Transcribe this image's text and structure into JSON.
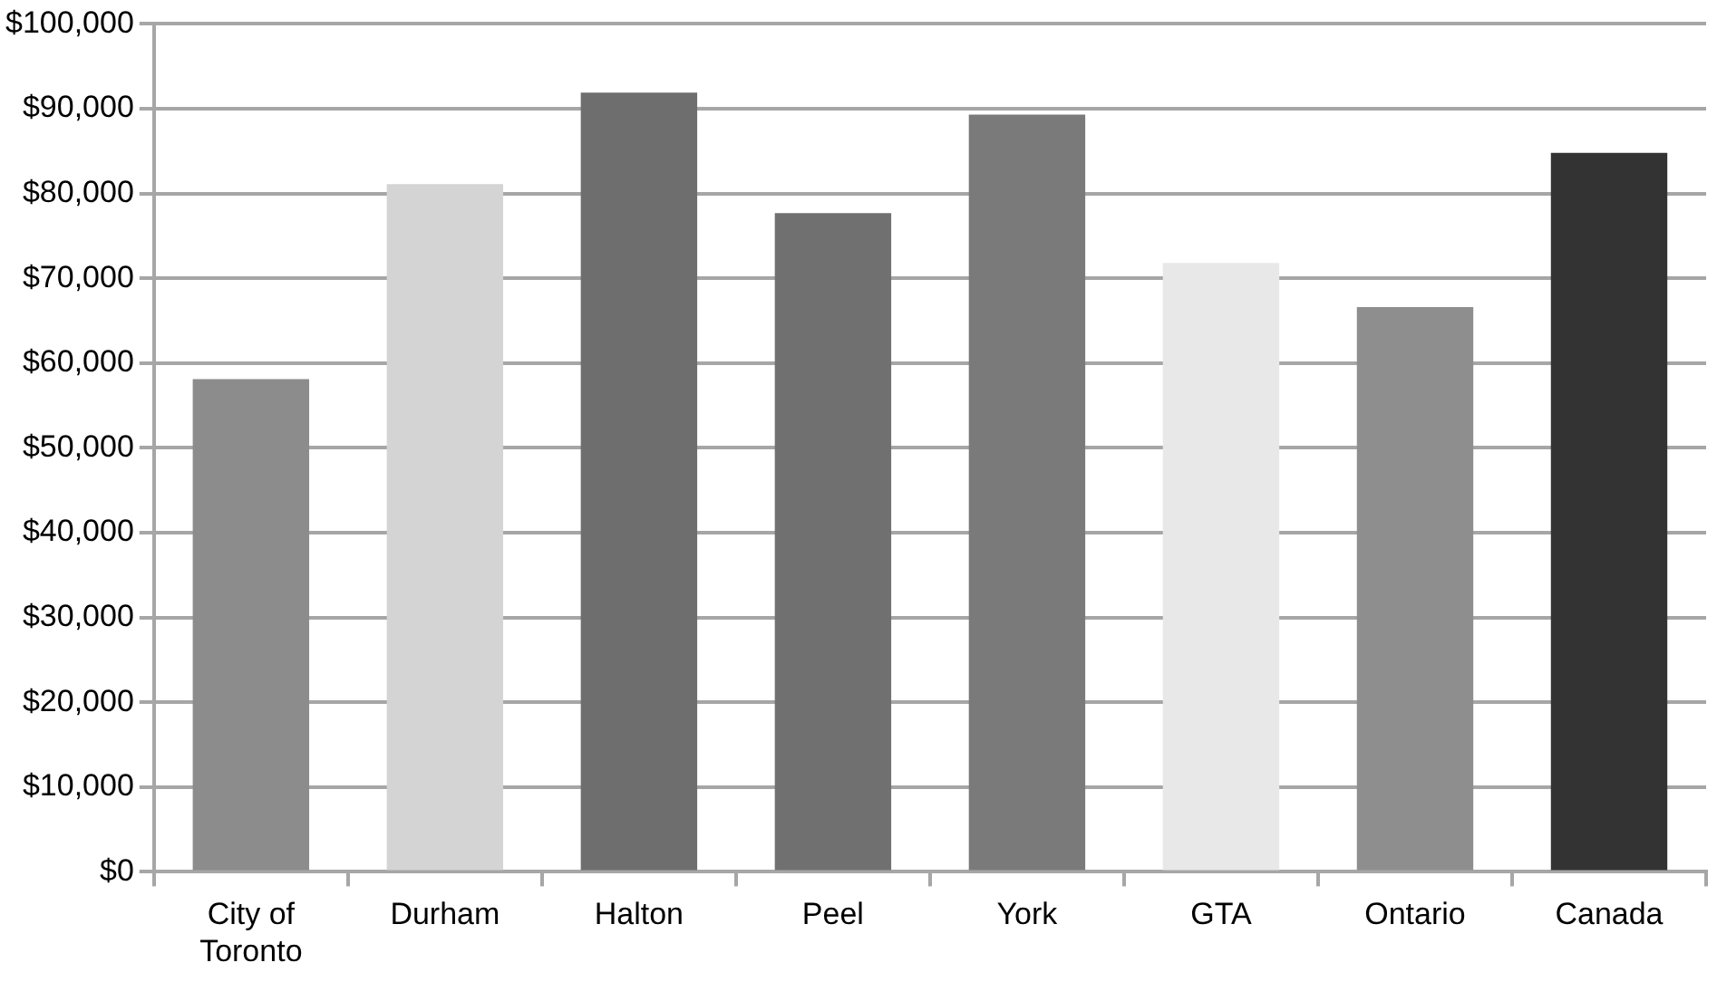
{
  "chart_data": {
    "type": "bar",
    "categories": [
      "City of Toronto",
      "Durham",
      "Halton",
      "Peel",
      "York",
      "GTA",
      "Ontario",
      "Canada"
    ],
    "values": [
      58100,
      81100,
      91900,
      77700,
      89300,
      71800,
      66600,
      84800
    ],
    "colors": [
      "#8c8c8c",
      "#d4d4d4",
      "#6e6e6e",
      "#707070",
      "#7a7a7a",
      "#e8e8e8",
      "#8e8e8e",
      "#333333"
    ],
    "ylim": [
      0,
      100000
    ],
    "yticks": [
      {
        "value": 0,
        "label": "$0"
      },
      {
        "value": 10000,
        "label": "$10,000"
      },
      {
        "value": 20000,
        "label": "$20,000"
      },
      {
        "value": 30000,
        "label": "$30,000"
      },
      {
        "value": 40000,
        "label": "$40,000"
      },
      {
        "value": 50000,
        "label": "$50,000"
      },
      {
        "value": 60000,
        "label": "$60,000"
      },
      {
        "value": 70000,
        "label": "$70,000"
      },
      {
        "value": 80000,
        "label": "$80,000"
      },
      {
        "value": 90000,
        "label": "$90,000"
      },
      {
        "value": 100000,
        "label": "$100,000"
      }
    ],
    "grid": "y",
    "legend": false
  }
}
